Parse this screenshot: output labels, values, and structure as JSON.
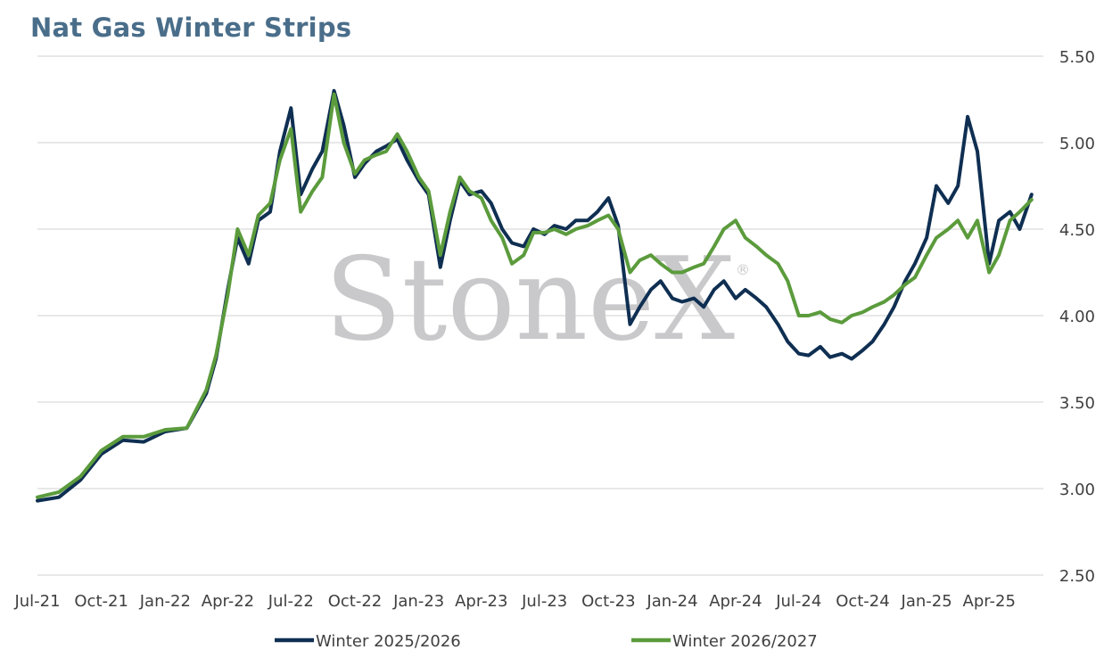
{
  "chart_data": {
    "type": "line",
    "title": "Nat Gas Winter Strips",
    "xlabel": "",
    "ylabel": "",
    "ylim": [
      2.5,
      5.5
    ],
    "y_ticks": [
      "2.50",
      "3.00",
      "3.50",
      "4.00",
      "4.50",
      "5.00",
      "5.50"
    ],
    "x_ticks": [
      "Jul-21",
      "Oct-21",
      "Jan-22",
      "Apr-22",
      "Jul-22",
      "Oct-22",
      "Jan-23",
      "Apr-23",
      "Jul-23",
      "Oct-23",
      "Jan-24",
      "Apr-24",
      "Jul-24",
      "Oct-24",
      "Jan-25",
      "Apr-25"
    ],
    "grid": true,
    "legend_position": "bottom",
    "watermark": "StoneX",
    "watermark_mark": "®",
    "x": [
      "2021-07-01",
      "2021-08-01",
      "2021-09-01",
      "2021-10-01",
      "2021-11-01",
      "2021-12-01",
      "2022-01-01",
      "2022-02-01",
      "2022-03-01",
      "2022-03-15",
      "2022-04-01",
      "2022-04-15",
      "2022-05-01",
      "2022-05-15",
      "2022-06-01",
      "2022-06-15",
      "2022-07-01",
      "2022-07-15",
      "2022-08-01",
      "2022-08-15",
      "2022-09-01",
      "2022-09-15",
      "2022-10-01",
      "2022-10-15",
      "2022-11-01",
      "2022-11-15",
      "2022-12-01",
      "2022-12-15",
      "2023-01-01",
      "2023-01-15",
      "2023-02-01",
      "2023-02-15",
      "2023-03-01",
      "2023-03-15",
      "2023-04-01",
      "2023-04-15",
      "2023-05-01",
      "2023-05-15",
      "2023-06-01",
      "2023-06-15",
      "2023-07-01",
      "2023-07-15",
      "2023-08-01",
      "2023-08-15",
      "2023-09-01",
      "2023-09-15",
      "2023-10-01",
      "2023-10-15",
      "2023-11-01",
      "2023-11-15",
      "2023-12-01",
      "2023-12-15",
      "2024-01-01",
      "2024-01-15",
      "2024-02-01",
      "2024-02-15",
      "2024-03-01",
      "2024-03-15",
      "2024-04-01",
      "2024-04-15",
      "2024-05-01",
      "2024-05-15",
      "2024-06-01",
      "2024-06-15",
      "2024-07-01",
      "2024-07-15",
      "2024-08-01",
      "2024-08-15",
      "2024-09-01",
      "2024-09-15",
      "2024-10-01",
      "2024-10-15",
      "2024-11-01",
      "2024-11-15",
      "2024-12-01",
      "2024-12-15",
      "2025-01-01",
      "2025-01-15",
      "2025-02-01",
      "2025-02-15",
      "2025-03-01",
      "2025-03-15",
      "2025-04-01",
      "2025-04-15",
      "2025-05-01",
      "2025-05-15",
      "2025-06-01"
    ],
    "series": [
      {
        "name": "Winter 2025/2026",
        "color": "#0f2f52",
        "values": [
          2.93,
          2.95,
          3.05,
          3.2,
          3.28,
          3.27,
          3.33,
          3.35,
          3.55,
          3.75,
          4.15,
          4.45,
          4.3,
          4.55,
          4.6,
          4.95,
          5.2,
          4.7,
          4.85,
          4.95,
          5.3,
          5.1,
          4.8,
          4.88,
          4.95,
          4.98,
          5.02,
          4.9,
          4.78,
          4.7,
          4.28,
          4.55,
          4.78,
          4.7,
          4.72,
          4.65,
          4.5,
          4.42,
          4.4,
          4.5,
          4.47,
          4.52,
          4.5,
          4.55,
          4.55,
          4.6,
          4.68,
          4.52,
          3.95,
          4.05,
          4.15,
          4.2,
          4.1,
          4.08,
          4.1,
          4.05,
          4.15,
          4.2,
          4.1,
          4.15,
          4.1,
          4.05,
          3.95,
          3.85,
          3.78,
          3.77,
          3.82,
          3.76,
          3.78,
          3.75,
          3.8,
          3.85,
          3.95,
          4.05,
          4.2,
          4.3,
          4.45,
          4.75,
          4.65,
          4.75,
          5.15,
          4.95,
          4.3,
          4.55,
          4.6,
          4.5,
          4.7
        ]
      },
      {
        "name": "Winter 2026/2027",
        "color": "#5b9b3c",
        "values": [
          2.95,
          2.98,
          3.07,
          3.22,
          3.3,
          3.3,
          3.34,
          3.35,
          3.57,
          3.77,
          4.12,
          4.5,
          4.35,
          4.58,
          4.65,
          4.9,
          5.08,
          4.6,
          4.72,
          4.8,
          5.28,
          5.0,
          4.82,
          4.9,
          4.93,
          4.95,
          5.05,
          4.95,
          4.8,
          4.72,
          4.35,
          4.6,
          4.8,
          4.72,
          4.68,
          4.55,
          4.45,
          4.3,
          4.35,
          4.48,
          4.48,
          4.5,
          4.47,
          4.5,
          4.52,
          4.55,
          4.58,
          4.5,
          4.25,
          4.32,
          4.35,
          4.3,
          4.25,
          4.25,
          4.28,
          4.3,
          4.4,
          4.5,
          4.55,
          4.45,
          4.4,
          4.35,
          4.3,
          4.2,
          4.0,
          4.0,
          4.02,
          3.98,
          3.96,
          4.0,
          4.02,
          4.05,
          4.08,
          4.12,
          4.18,
          4.22,
          4.35,
          4.45,
          4.5,
          4.55,
          4.45,
          4.55,
          4.25,
          4.35,
          4.55,
          4.6,
          4.67
        ]
      }
    ]
  }
}
